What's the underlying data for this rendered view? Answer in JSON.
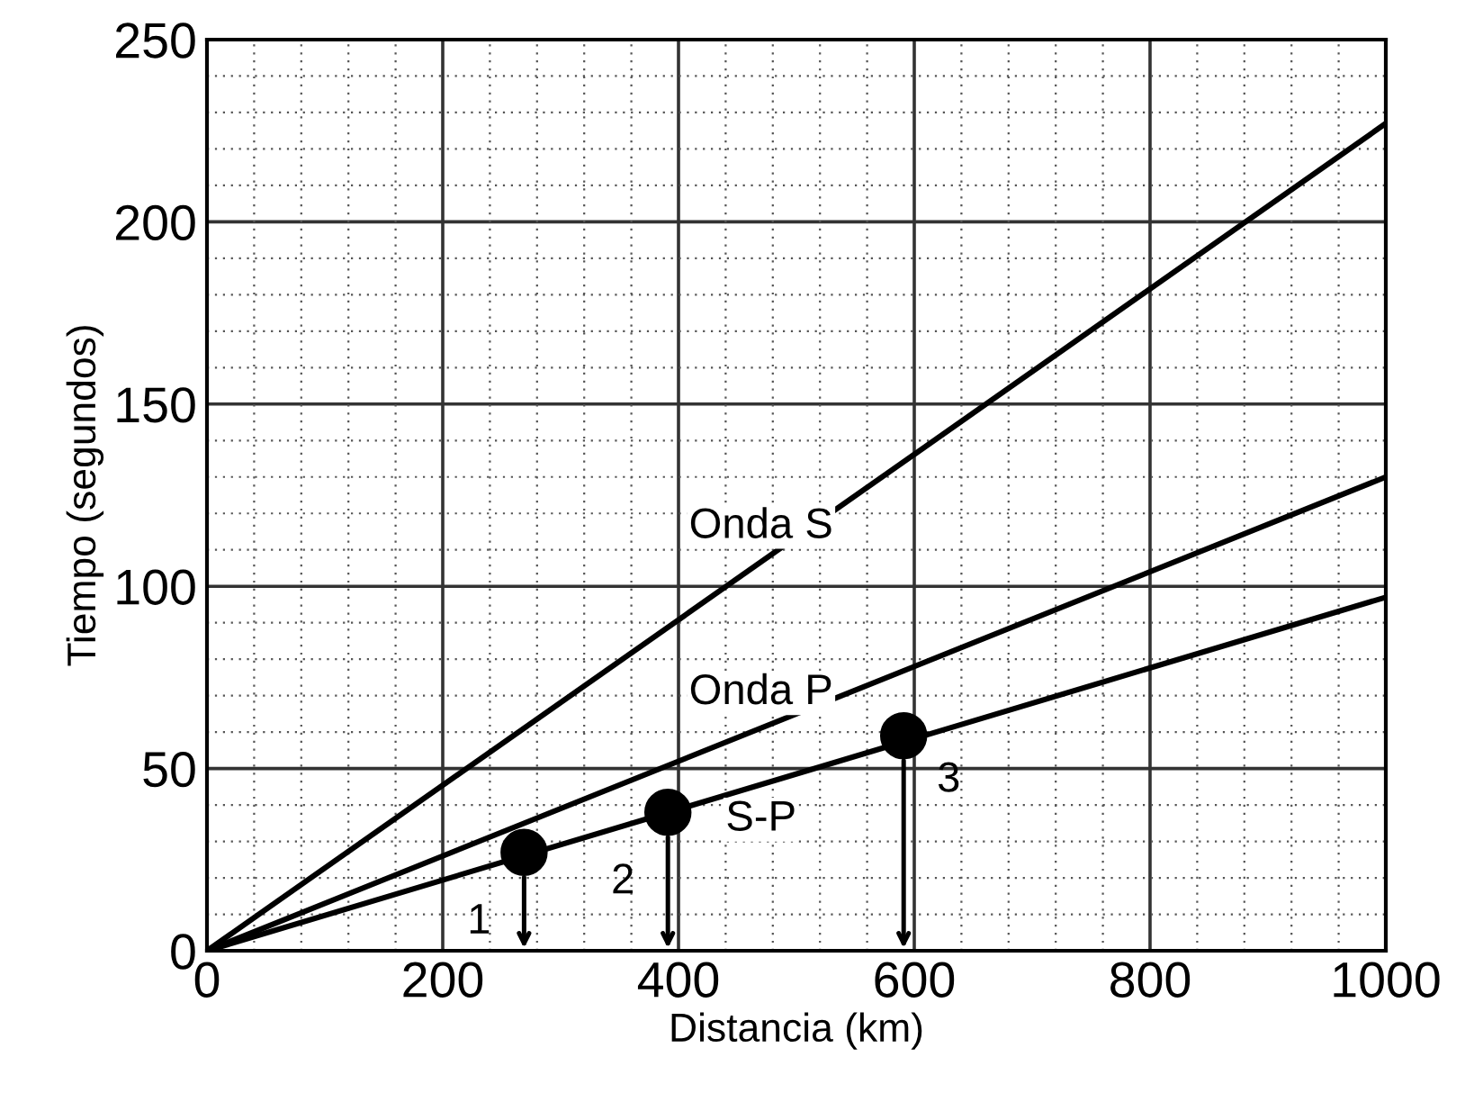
{
  "chart_data": {
    "type": "line",
    "xlabel": "Distancia (km)",
    "ylabel": "Tiempo (segundos)",
    "xlim": [
      0,
      1000
    ],
    "xticks": [
      0,
      200,
      400,
      600,
      800,
      1000
    ],
    "ylim": [
      0,
      250
    ],
    "yticks": [
      0,
      50,
      100,
      150,
      200,
      250
    ],
    "grid": true,
    "marker": "none",
    "line_style": "solid",
    "series": [
      {
        "name": "Onda S",
        "color": "#000000",
        "x": [
          0,
          1000
        ],
        "values": [
          0,
          227
        ]
      },
      {
        "name": "Onda P",
        "color": "#000000",
        "x": [
          0,
          1000
        ],
        "values": [
          0,
          130
        ]
      },
      {
        "name": "S-P",
        "color": "#000000",
        "x": [
          0,
          1000
        ],
        "values": [
          0,
          97
        ]
      },
      {
        "type": "scatter",
        "color": "#000000",
        "marker": "circle",
        "x": [
          269,
          391,
          591
        ],
        "values": [
          27,
          38,
          59
        ]
      }
    ],
    "annotations": [
      {
        "text": "1",
        "x": 269,
        "y": 27
      },
      {
        "text": "2",
        "x": 391,
        "y": 38
      },
      {
        "text": "3",
        "x": 591,
        "y": 59
      }
    ]
  }
}
